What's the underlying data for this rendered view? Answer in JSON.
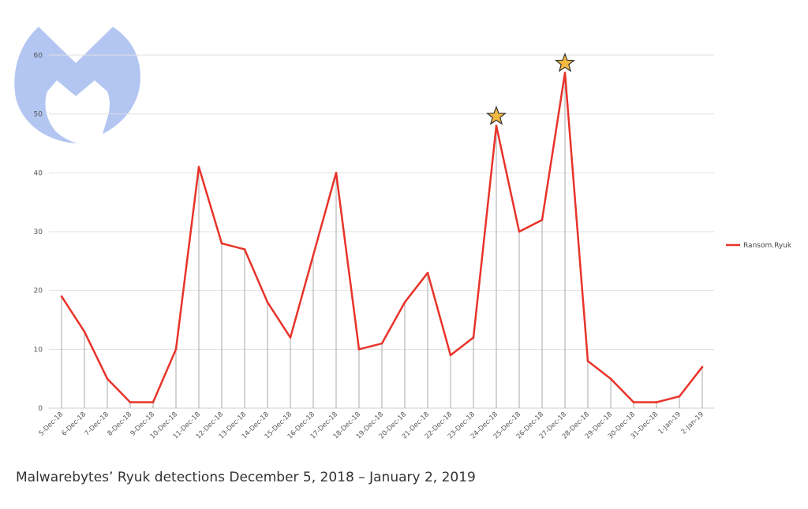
{
  "caption": "Malwarebytes’ Ryuk detections December 5, 2018 – January 2, 2019",
  "logo": {
    "name": "malwarebytes-logo",
    "color": "#b3c6f2"
  },
  "colors": {
    "series": "#e8332a",
    "grid": "#e0e0e0",
    "droplines": "#aaaaaa",
    "star_fill": "#f4b940",
    "star_stroke": "#333333"
  },
  "chart_data": {
    "type": "line",
    "title": "",
    "xlabel": "",
    "ylabel": "",
    "ylim": [
      0,
      60
    ],
    "yticks": [
      "0",
      "10",
      "20",
      "30",
      "40",
      "50",
      "60"
    ],
    "grid": true,
    "legend_position": "right",
    "categories": [
      "5-Dec-18",
      "6-Dec-18",
      "7-Dec-18",
      "8-Dec-18",
      "9-Dec-18",
      "10-Dec-18",
      "11-Dec-18",
      "12-Dec-18",
      "13-Dec-18",
      "14-Dec-18",
      "15-Dec-18",
      "16-Dec-18",
      "17-Dec-18",
      "18-Dec-18",
      "19-Dec-18",
      "20-Dec-18",
      "21-Dec-18",
      "22-Dec-18",
      "23-Dec-18",
      "24-Dec-18",
      "25-Dec-18",
      "26-Dec-18",
      "27-Dec-18",
      "28-Dec-18",
      "29-Dec-18",
      "30-Dec-18",
      "31-Dec-18",
      "1-Jan-19",
      "2-Jan-19"
    ],
    "series": [
      {
        "name": "Ransom.Ryuk",
        "values": [
          19,
          13,
          5,
          1,
          1,
          10,
          41,
          28,
          27,
          18,
          12,
          26,
          40,
          10,
          11,
          18,
          23,
          9,
          12,
          48,
          30,
          32,
          57,
          8,
          5,
          1,
          1,
          2,
          7
        ]
      }
    ],
    "annotations": [
      {
        "type": "star",
        "category": "24-Dec-18"
      },
      {
        "type": "star",
        "category": "27-Dec-18"
      }
    ]
  }
}
